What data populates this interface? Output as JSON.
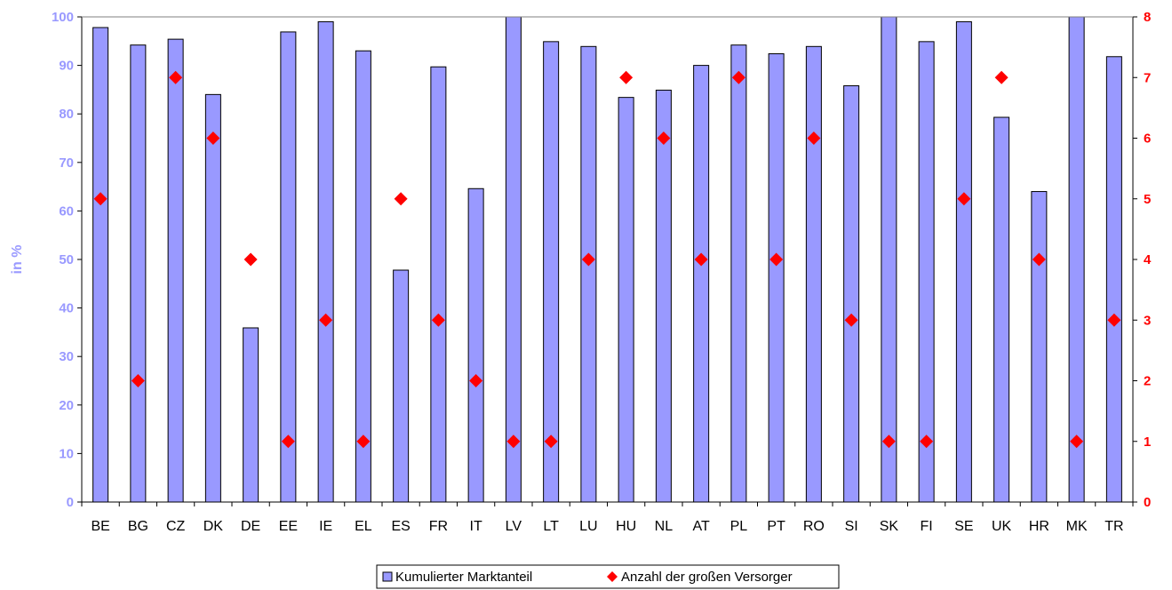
{
  "chart_data": {
    "type": "bar+scatter",
    "categories": [
      "BE",
      "BG",
      "CZ",
      "DK",
      "DE",
      "EE",
      "IE",
      "EL",
      "ES",
      "FR",
      "IT",
      "LV",
      "LT",
      "LU",
      "HU",
      "NL",
      "AT",
      "PL",
      "PT",
      "RO",
      "SI",
      "SK",
      "FI",
      "SE",
      "UK",
      "HR",
      "MK",
      "TR"
    ],
    "series": [
      {
        "name": "Kumulierter Marktanteil",
        "type": "bar",
        "axis": "left",
        "values": [
          97.8,
          94.2,
          95.4,
          84.0,
          35.9,
          96.9,
          99.0,
          93.0,
          47.8,
          89.7,
          64.6,
          100,
          94.9,
          93.9,
          83.4,
          84.9,
          90.0,
          94.2,
          92.4,
          93.9,
          85.8,
          100,
          94.9,
          99.0,
          79.3,
          64.0,
          100,
          91.8
        ]
      },
      {
        "name": "Anzahl der großen Versorger",
        "type": "scatter",
        "axis": "right",
        "values": [
          5,
          2,
          7,
          6,
          4,
          1,
          3,
          1,
          5,
          3,
          2,
          1,
          1,
          4,
          7,
          6,
          4,
          7,
          4,
          6,
          3,
          1,
          1,
          5,
          7,
          4,
          1,
          3
        ]
      }
    ],
    "ylabel": "in %",
    "ylim": [
      0,
      100
    ],
    "yticks": [
      "0",
      "10",
      "20",
      "30",
      "40",
      "50",
      "60",
      "70",
      "80",
      "90",
      "100"
    ],
    "y2lim": [
      0,
      8
    ],
    "y2ticks": [
      "0",
      "1",
      "2",
      "3",
      "4",
      "5",
      "6",
      "7",
      "8"
    ],
    "grid": false,
    "legend_position": "bottom-center",
    "colors": {
      "bar_fill": "#9999ff",
      "bar_stroke": "#000000",
      "marker": "#ff0000",
      "left_axis_text": "#9999ff",
      "right_axis_text": "#ff0000",
      "axis_line": "#000000"
    }
  }
}
